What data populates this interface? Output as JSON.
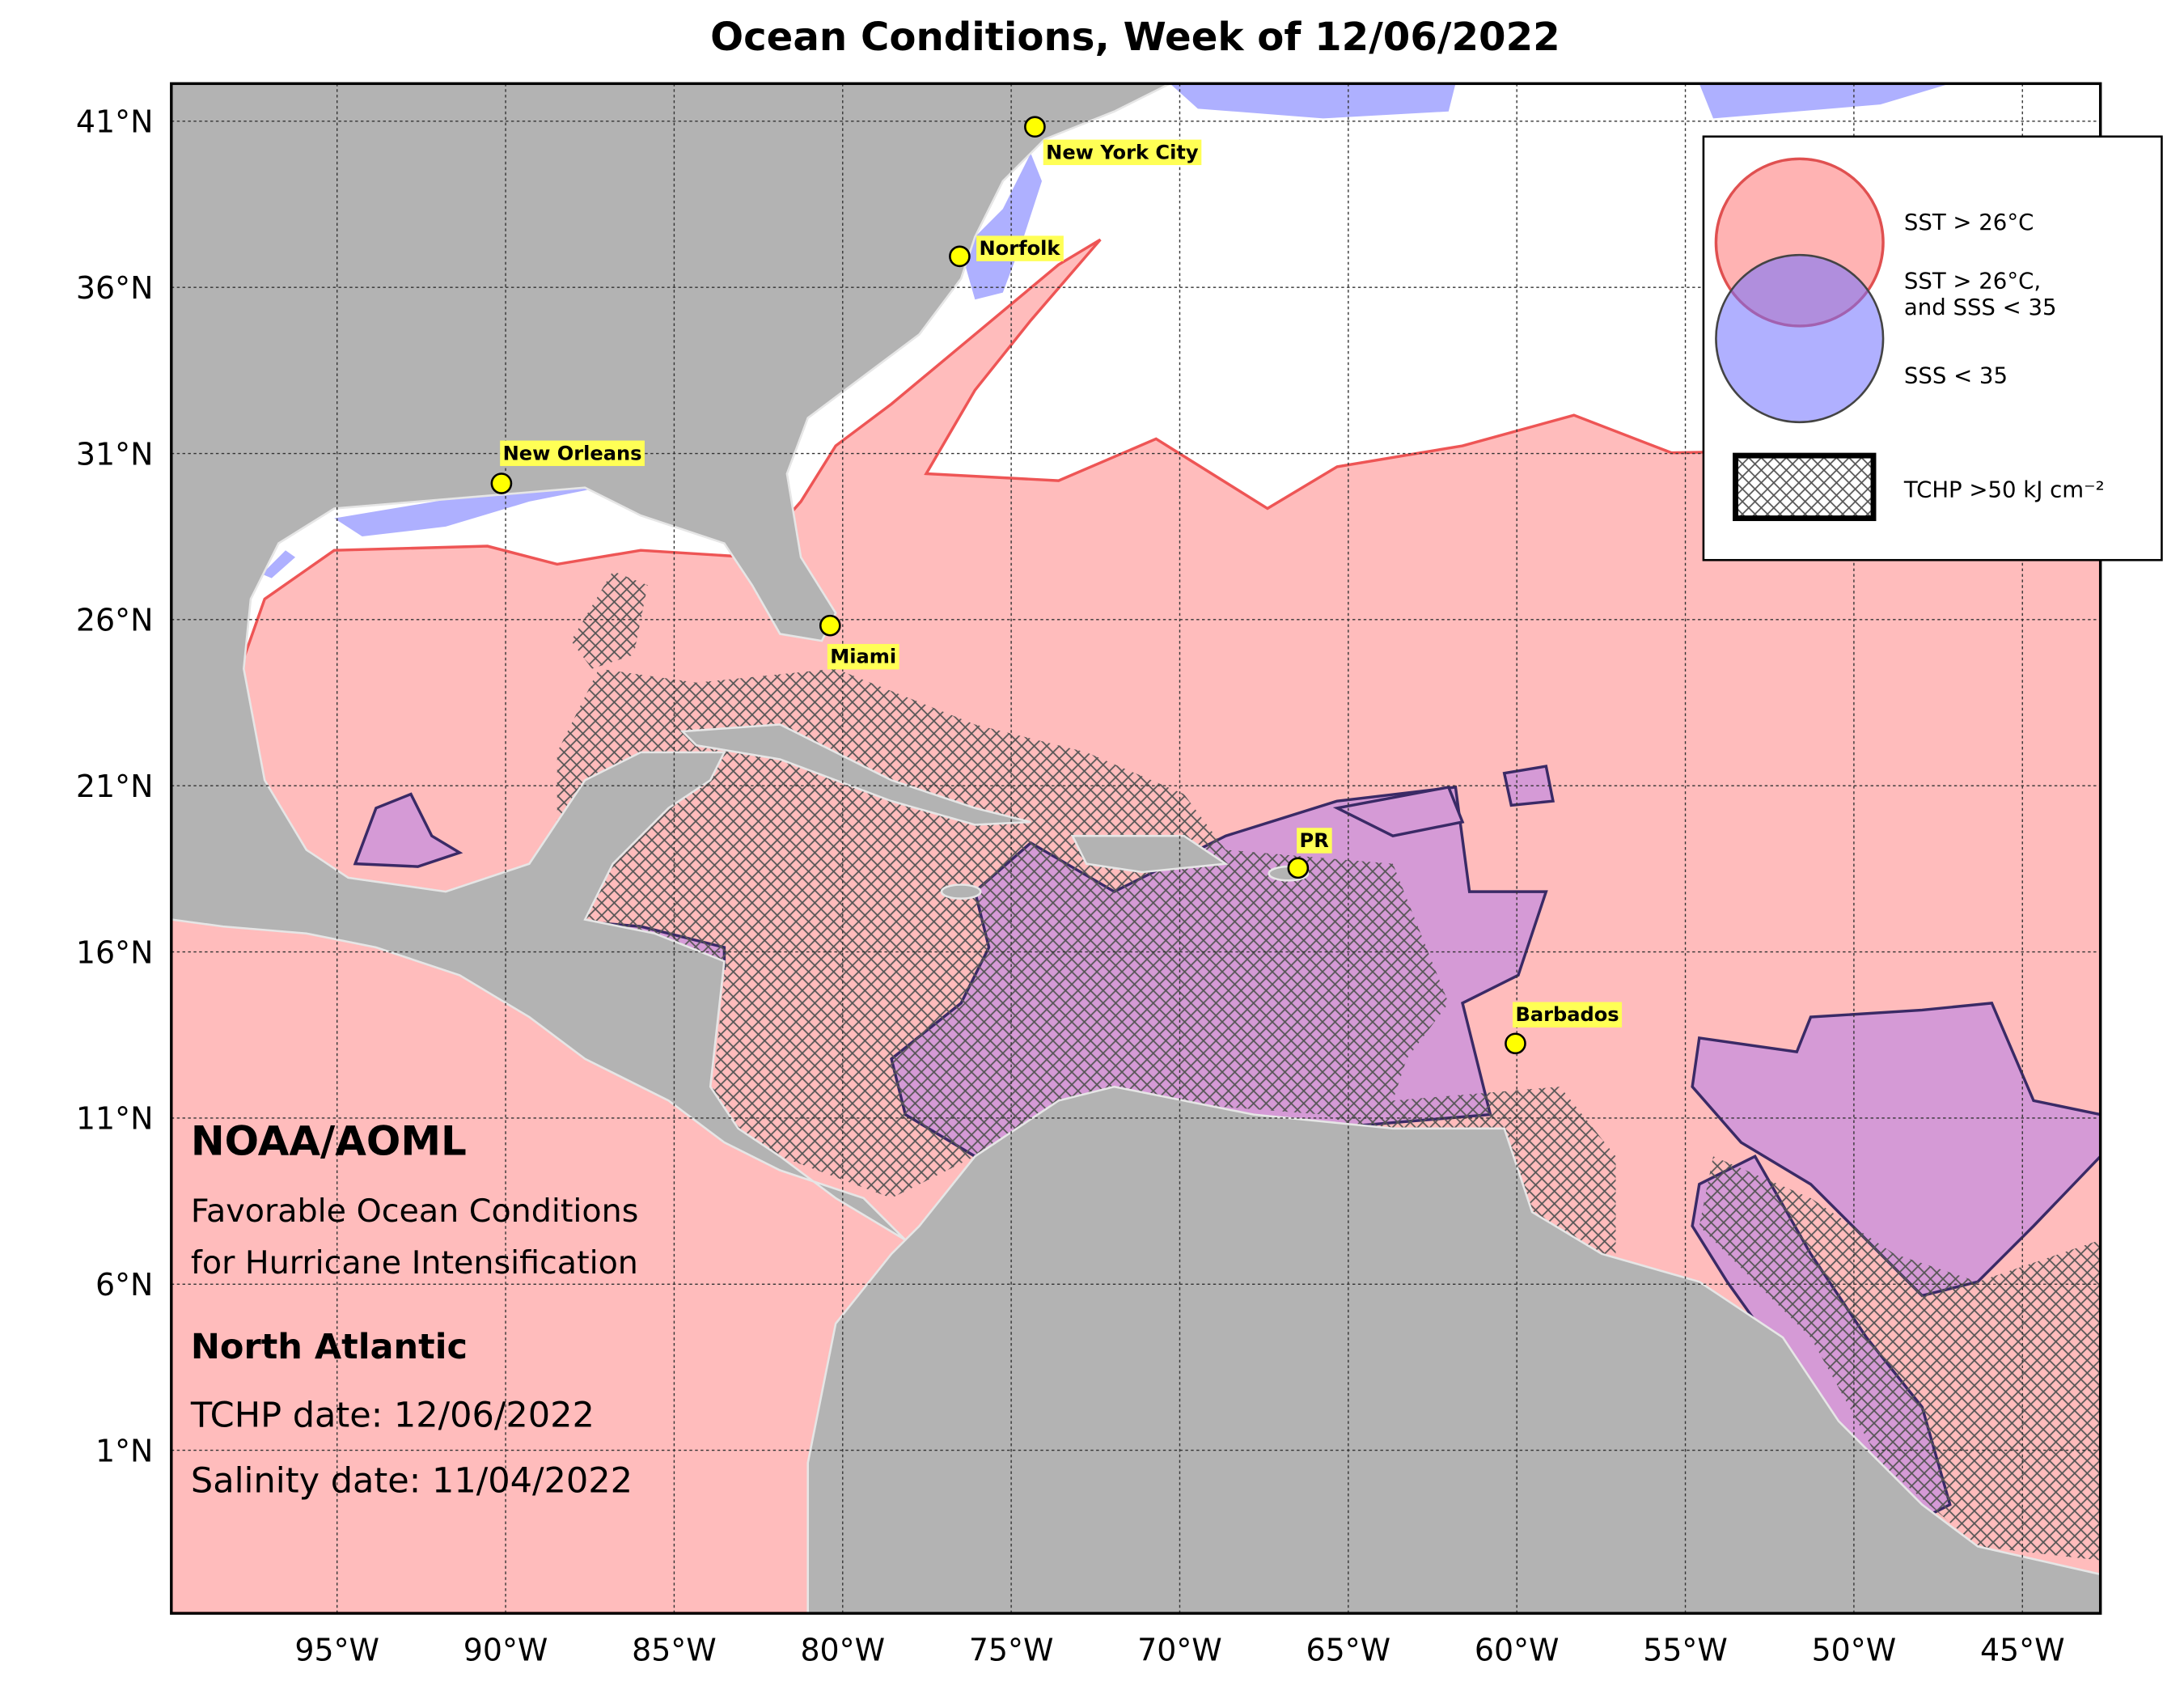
{
  "title": "Ocean Conditions, Week of 12/06/2022",
  "axes": {
    "lat_labels": [
      "41°N",
      "36°N",
      "31°N",
      "26°N",
      "21°N",
      "16°N",
      "11°N",
      "6°N",
      "1°N"
    ],
    "lon_labels": [
      "95°W",
      "90°W",
      "85°W",
      "80°W",
      "75°W",
      "70°W",
      "65°W",
      "60°W",
      "55°W",
      "50°W",
      "45°W"
    ]
  },
  "cities": [
    {
      "name": "New York City"
    },
    {
      "name": "Norfolk"
    },
    {
      "name": "New Orleans"
    },
    {
      "name": "Miami"
    },
    {
      "name": "PR"
    },
    {
      "name": "Barbados"
    }
  ],
  "legend": [
    "SST > 26°C",
    "SST > 26°C,",
    "and SSS < 35",
    "SSS < 35",
    "TCHP >50 kJ cm⁻²"
  ],
  "panel": {
    "org": "NOAA/AOML",
    "subtitle_lines": [
      "Favorable Ocean Conditions",
      "for Hurricane Intensification"
    ],
    "region": "North Atlantic",
    "tchp_date": "TCHP date: 12/06/2022",
    "salinity_date": "Salinity date: 11/04/2022"
  }
}
